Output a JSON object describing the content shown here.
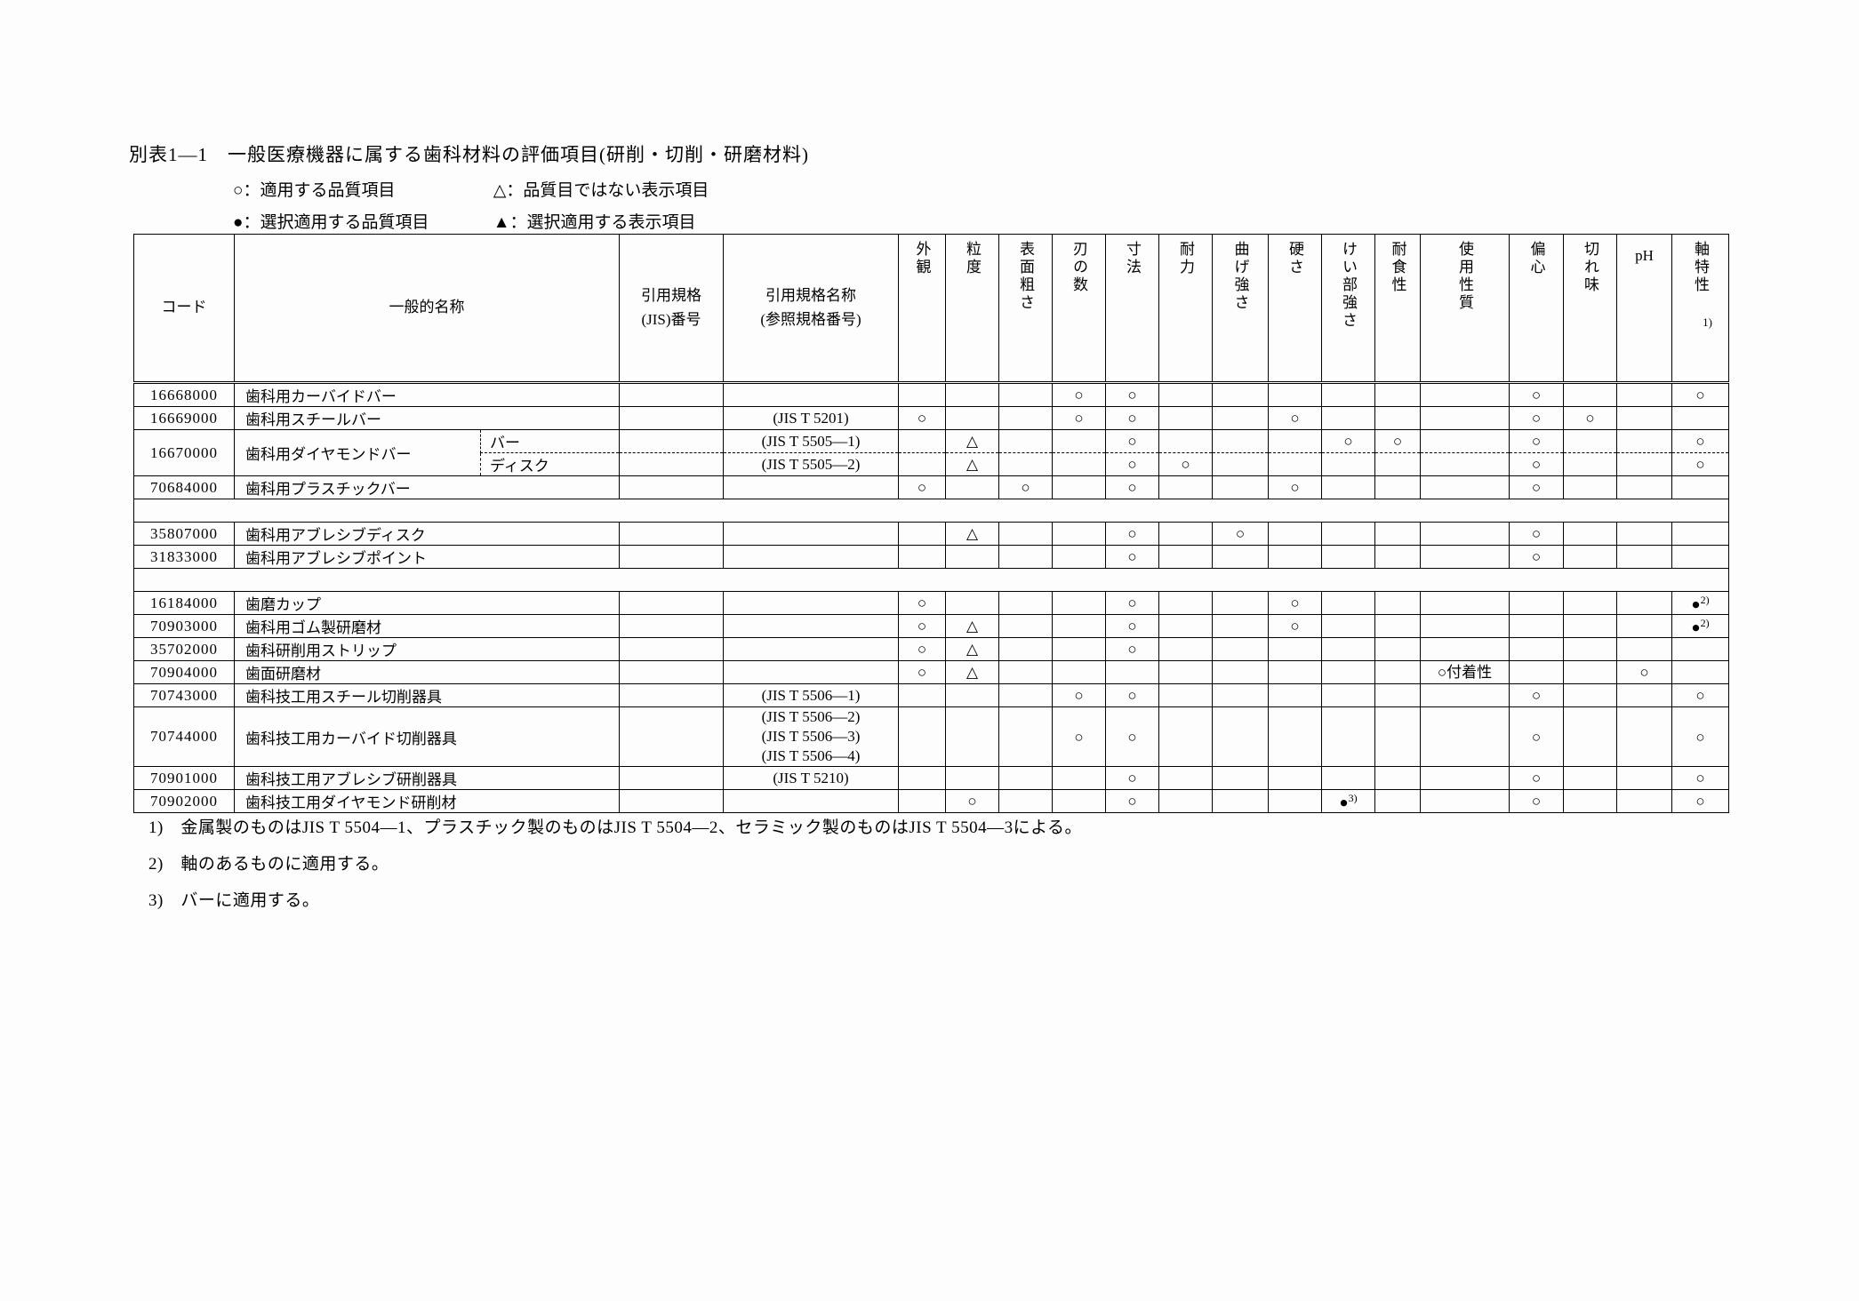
{
  "title": "別表1―1　一般医療機器に属する歯科材料の評価項目(研削・切削・研磨材料)",
  "legend": {
    "items": [
      "○：適用する品質項目",
      "△：品質目ではない表示項目",
      "●：選択適用する品質項目",
      "▲：選択適用する表示項目"
    ]
  },
  "table": {
    "headers": {
      "code": "コード",
      "name": "一般的名称",
      "jis_no": "引用規格\n(JIS)番号",
      "jis_name": "引用規格名称\n(参照規格番号)",
      "criteria": [
        {
          "id": "gaikan",
          "label": "外観"
        },
        {
          "id": "ryudo",
          "label": "粒度"
        },
        {
          "id": "hyomen-arasa",
          "label": "表面粗さ"
        },
        {
          "id": "ha-no-kazu",
          "label": "刃の数"
        },
        {
          "id": "sunpo",
          "label": "寸法"
        },
        {
          "id": "tairyoku",
          "label": "耐力"
        },
        {
          "id": "mage-tsuyosa",
          "label": "曲げ強さ"
        },
        {
          "id": "katasa",
          "label": "硬さ"
        },
        {
          "id": "keibu-tsuyosa",
          "label": "けい部強さ"
        },
        {
          "id": "taishokusei",
          "label": "耐食性"
        },
        {
          "id": "shiyo-seishitsu",
          "label": "使用性質"
        },
        {
          "id": "henshin",
          "label": "偏心"
        },
        {
          "id": "kireaji",
          "label": "切れ味"
        },
        {
          "id": "ph",
          "label": "pH",
          "horizontal": true
        },
        {
          "id": "jiku-tokusei",
          "label": "軸特性",
          "note": "1)"
        }
      ]
    },
    "rows": [
      {
        "code": "16668000",
        "name": "歯科用カーバイドバー",
        "jis_no": "",
        "jis_name": "",
        "marks": [
          "",
          "",
          "",
          "○",
          "○",
          "",
          "",
          "",
          "",
          "",
          "",
          "○",
          "",
          "",
          "○"
        ]
      },
      {
        "code": "16669000",
        "name": "歯科用スチールバー",
        "jis_no": "",
        "jis_name": "(JIS T 5201)",
        "marks": [
          "○",
          "",
          "",
          "○",
          "○",
          "",
          "",
          "○",
          "",
          "",
          "",
          "○",
          "○",
          "",
          ""
        ]
      },
      {
        "code": "16670000",
        "name": "歯科用ダイヤモンドバー",
        "subrows": [
          {
            "sublabel": "バー",
            "jis_no": "",
            "jis_name": "(JIS T 5505―1)",
            "marks": [
              "",
              "△",
              "",
              "",
              "○",
              "",
              "",
              "",
              "○",
              "○",
              "",
              "○",
              "",
              "",
              "○"
            ]
          },
          {
            "sublabel": "ディスク",
            "jis_no": "",
            "jis_name": "(JIS T 5505―2)",
            "marks": [
              "",
              "△",
              "",
              "",
              "○",
              "○",
              "",
              "",
              "",
              "",
              "",
              "○",
              "",
              "",
              "○"
            ]
          }
        ]
      },
      {
        "code": "70684000",
        "name": "歯科用プラスチックバー",
        "jis_no": "",
        "jis_name": "",
        "marks": [
          "○",
          "",
          "○",
          "",
          "○",
          "",
          "",
          "○",
          "",
          "",
          "",
          "○",
          "",
          "",
          ""
        ]
      },
      {
        "separator": true
      },
      {
        "code": "35807000",
        "name": "歯科用アブレシブディスク",
        "jis_no": "",
        "jis_name": "",
        "marks": [
          "",
          "△",
          "",
          "",
          "○",
          "",
          "○",
          "",
          "",
          "",
          "",
          "○",
          "",
          "",
          ""
        ]
      },
      {
        "code": "31833000",
        "name": "歯科用アブレシブポイント",
        "jis_no": "",
        "jis_name": "",
        "marks": [
          "",
          "",
          "",
          "",
          "○",
          "",
          "",
          "",
          "",
          "",
          "",
          "○",
          "",
          "",
          ""
        ]
      },
      {
        "separator": true
      },
      {
        "code": "16184000",
        "name": "歯磨カップ",
        "jis_no": "",
        "jis_name": "",
        "marks": [
          "○",
          "",
          "",
          "",
          "○",
          "",
          "",
          "○",
          "",
          "",
          "",
          "",
          "",
          "",
          "●^2)"
        ]
      },
      {
        "code": "70903000",
        "name": "歯科用ゴム製研磨材",
        "jis_no": "",
        "jis_name": "",
        "marks": [
          "○",
          "△",
          "",
          "",
          "○",
          "",
          "",
          "○",
          "",
          "",
          "",
          "",
          "",
          "",
          "●^2)"
        ]
      },
      {
        "code": "35702000",
        "name": "歯科研削用ストリップ",
        "jis_no": "",
        "jis_name": "",
        "marks": [
          "○",
          "△",
          "",
          "",
          "○",
          "",
          "",
          "",
          "",
          "",
          "",
          "",
          "",
          "",
          ""
        ]
      },
      {
        "code": "70904000",
        "name": "歯面研磨材",
        "jis_no": "",
        "jis_name": "",
        "marks": [
          "○",
          "△",
          "",
          "",
          "",
          "",
          "",
          "",
          "",
          "",
          "○付着性",
          "",
          "",
          "○",
          ""
        ]
      },
      {
        "code": "70743000",
        "name": "歯科技工用スチール切削器具",
        "jis_no": "",
        "jis_name": "(JIS T 5506―1)",
        "marks": [
          "",
          "",
          "",
          "○",
          "○",
          "",
          "",
          "",
          "",
          "",
          "",
          "○",
          "",
          "",
          "○"
        ]
      },
      {
        "code": "70744000",
        "name": "歯科技工用カーバイド切削器具",
        "jis_no": "",
        "jis_name": [
          "(JIS T 5506―2)",
          "(JIS T 5506―3)",
          "(JIS T 5506―4)"
        ],
        "tall": true,
        "marks": [
          "",
          "",
          "",
          "○",
          "○",
          "",
          "",
          "",
          "",
          "",
          "",
          "○",
          "",
          "",
          "○"
        ]
      },
      {
        "code": "70901000",
        "name": "歯科技工用アブレシブ研削器具",
        "jis_no": "",
        "jis_name": "(JIS T 5210)",
        "marks": [
          "",
          "",
          "",
          "",
          "○",
          "",
          "",
          "",
          "",
          "",
          "",
          "○",
          "",
          "",
          "○"
        ]
      },
      {
        "code": "70902000",
        "name": "歯科技工用ダイヤモンド研削材",
        "jis_no": "",
        "jis_name": "",
        "marks": [
          "",
          "○",
          "",
          "",
          "○",
          "",
          "",
          "",
          "●^3)",
          "",
          "",
          "○",
          "",
          "",
          "○"
        ]
      }
    ]
  },
  "footnotes": [
    "1)　金属製のものはJIS T 5504―1、プラスチック製のものはJIS T 5504―2、セラミック製のものはJIS T 5504―3による。",
    "2)　軸のあるものに適用する。",
    "3)　バーに適用する。"
  ]
}
